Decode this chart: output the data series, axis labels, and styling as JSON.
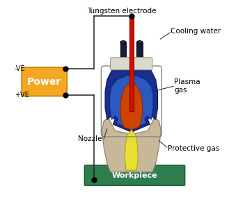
{
  "bg_color": "#ffffff",
  "power_box_color": "#f5a623",
  "power_box_text": "Power",
  "workpiece_color": "#2e7d4f",
  "workpiece_text": "Workpiece",
  "electrode_color": "#cc1100",
  "nozzle_body_color": "#c8b89a",
  "blue_body_color": "#1a2e8c",
  "inner_blue_color": "#2a5abf",
  "orange_inner_color": "#cc4400",
  "yellow_flame_color": "#e8e030",
  "dark_tube_color": "#1a1a3c",
  "wire_color": "#222222",
  "casing_color": "#ddd8cc",
  "label_tungsten": "Tungsten electrode",
  "label_cooling": "Cooling water",
  "label_plasma": "Plasma\ngas",
  "label_protective": "Protective gas",
  "label_nozzle": "Nozzle",
  "label_neg": "-VE",
  "label_pos": "+VE"
}
